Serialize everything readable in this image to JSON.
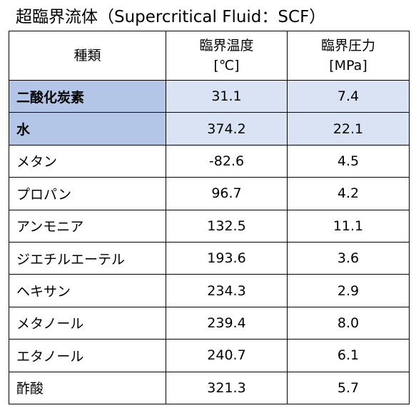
{
  "header": {
    "title": "超臨界流体（Supercritical Fluid：SCF）"
  },
  "table": {
    "columns": [
      [
        "種類"
      ],
      [
        "臨界温度",
        "[℃]"
      ],
      [
        "臨界圧力",
        "[MPa]"
      ]
    ],
    "rows": [
      [
        "二酸化炭素",
        "31.1",
        "7.4"
      ],
      [
        "水",
        "374.2",
        "22.1"
      ],
      [
        "メタン",
        "-82.6",
        "4.5"
      ],
      [
        "プロパン",
        "96.7",
        "4.2"
      ],
      [
        "アンモニア",
        "132.5",
        "11.1"
      ],
      [
        "ジエチルエーテル",
        "193.6",
        "3.6"
      ],
      [
        "ヘキサン",
        "234.3",
        "2.9"
      ],
      [
        "メタノール",
        "239.4",
        "8.0"
      ],
      [
        "エタノール",
        "240.7",
        "6.1"
      ],
      [
        "酢酸",
        "321.3",
        "5.7"
      ]
    ]
  }
}
